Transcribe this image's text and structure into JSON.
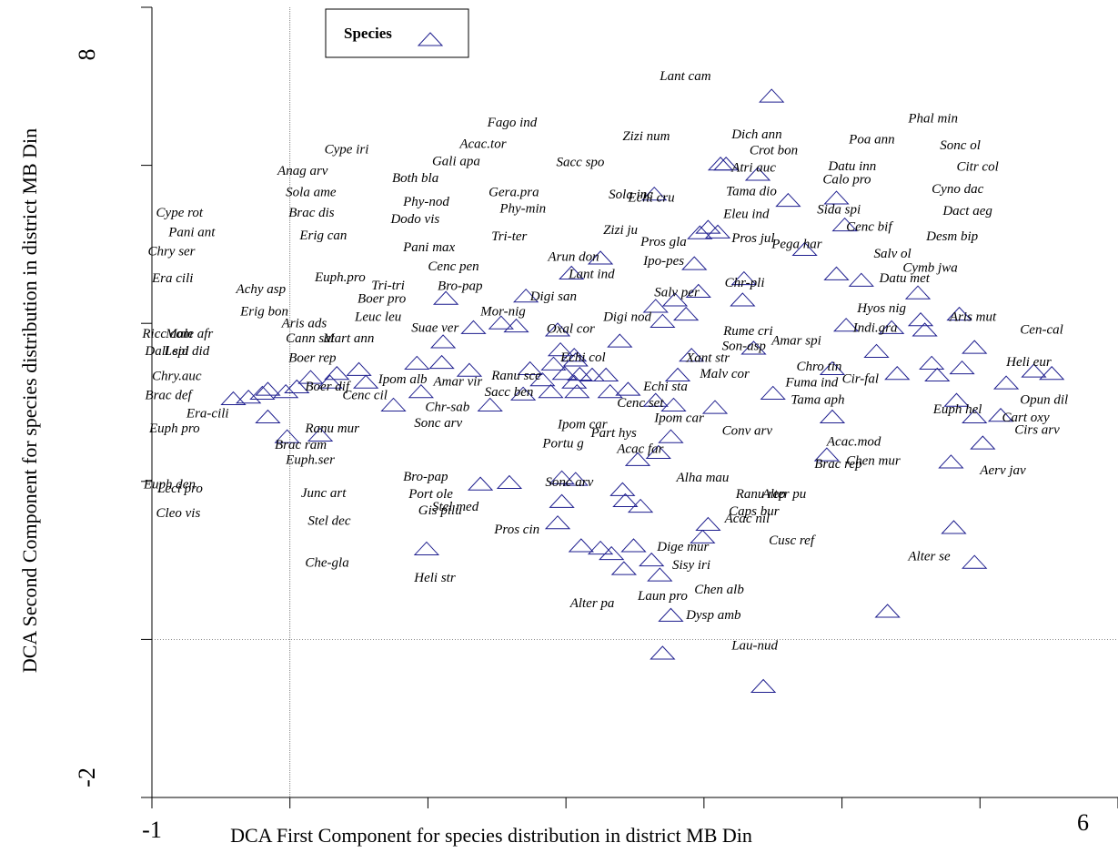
{
  "chart_data": {
    "type": "scatter",
    "xlabel": "DCA First Component for species distribution in district MB Din",
    "ylabel": "DCA Second Component for species distribution in district MB Din",
    "xlim": [
      -1,
      6
    ],
    "ylim": [
      -2,
      8
    ],
    "xticks": [
      -1,
      6
    ],
    "yticks": [
      -2,
      8
    ],
    "xminorticks": [
      0,
      1,
      2,
      3,
      4,
      5
    ],
    "yminorticks": [
      0,
      2,
      4,
      6
    ],
    "reference_lines": {
      "x": 0,
      "y": 0
    },
    "legend": "top-left",
    "series": [
      {
        "name": "Species",
        "color": "#1f1f8f",
        "x": [
          3.49,
          3.12,
          3.16,
          3.39,
          2.64,
          3.61,
          3.96,
          4.02,
          3.03,
          2.97,
          3.1,
          3.73,
          2.25,
          2.04,
          2.93,
          3.96,
          4.14,
          4.55,
          3.29,
          3.28,
          2.96,
          2.79,
          2.65,
          2.87,
          2.7,
          1.71,
          1.13,
          1.53,
          1.64,
          1.33,
          1.94,
          2.39,
          4.03,
          4.36,
          4.57,
          4.6,
          4.85,
          4.96,
          3.36,
          4.25,
          2.91,
          2.06,
          1.96,
          1.91,
          1.74,
          1.99,
          2.19,
          2.29,
          2.06,
          1.11,
          0.92,
          0.5,
          0.34,
          0.15,
          1.3,
          0.95,
          0.75,
          1.45,
          1.69,
          1.89,
          2.08,
          2.32,
          2.45,
          2.81,
          2.65,
          2.78,
          3.08,
          3.5,
          3.93,
          4.4,
          4.65,
          4.69,
          4.87,
          5.39,
          5.52,
          5.19,
          4.83,
          4.96,
          5.15,
          5.02,
          3.93,
          3.89,
          4.79,
          2.76,
          2.52,
          2.67,
          1.59,
          1.38,
          1.97,
          2.07,
          2.41,
          2.43,
          2.54,
          1.97,
          1.94,
          3.03,
          2.99,
          2.11,
          2.25,
          2.33,
          2.49,
          2.62,
          2.42,
          2.68,
          4.81,
          4.96,
          4.33,
          2.76,
          2.7,
          3.43,
          0.99,
          1.1,
          0.55,
          0.29,
          -0.03,
          -0.16,
          -0.2,
          -0.3,
          -0.41,
          0.05,
          -0.16,
          -0.02,
          0.22,
          1.83,
          2.1,
          2.07
        ],
        "y": [
          6.87,
          6.01,
          6.01,
          5.88,
          5.63,
          5.55,
          5.58,
          5.24,
          5.21,
          5.14,
          5.15,
          4.93,
          4.82,
          4.63,
          4.75,
          4.62,
          4.54,
          4.38,
          4.56,
          4.29,
          4.4,
          4.29,
          4.21,
          4.11,
          4.02,
          4.34,
          4.31,
          4.0,
          3.96,
          3.94,
          3.91,
          3.77,
          3.97,
          3.94,
          4.04,
          3.91,
          4.11,
          3.69,
          3.68,
          3.64,
          3.59,
          3.59,
          3.66,
          3.48,
          3.42,
          3.36,
          3.34,
          3.34,
          3.25,
          3.76,
          3.49,
          3.41,
          3.36,
          3.31,
          3.4,
          3.13,
          2.96,
          2.96,
          3.1,
          3.13,
          3.13,
          3.13,
          3.16,
          3.34,
          3.02,
          2.96,
          2.93,
          3.11,
          3.42,
          3.36,
          3.49,
          3.34,
          3.43,
          3.39,
          3.36,
          3.24,
          3.02,
          2.81,
          2.83,
          2.48,
          2.81,
          2.33,
          2.24,
          2.56,
          2.27,
          2.36,
          1.98,
          1.96,
          2.04,
          2.02,
          1.89,
          1.75,
          1.68,
          1.74,
          1.47,
          1.45,
          1.29,
          1.18,
          1.15,
          1.08,
          1.18,
          1.0,
          0.89,
          0.81,
          1.41,
          0.97,
          0.35,
          0.3,
          -0.18,
          -0.6,
          1.14,
          3.5,
          3.25,
          3.25,
          3.13,
          3.16,
          3.11,
          3.06,
          3.04,
          3.19,
          2.81,
          2.56,
          2.58,
          3.28,
          3.35,
          3.53
        ]
      }
    ],
    "annotations": [
      {
        "text": "Lant cam",
        "x": 2.68,
        "y": 7.12
      },
      {
        "text": "Fago ind",
        "x": 1.43,
        "y": 6.53
      },
      {
        "text": "Phal min",
        "x": 4.48,
        "y": 6.58
      },
      {
        "text": "Zizi num",
        "x": 2.41,
        "y": 6.36
      },
      {
        "text": "Dich ann",
        "x": 3.2,
        "y": 6.38
      },
      {
        "text": "Acac.tor",
        "x": 1.23,
        "y": 6.26
      },
      {
        "text": "Poa ann",
        "x": 4.05,
        "y": 6.32
      },
      {
        "text": "Sonc ol",
        "x": 4.71,
        "y": 6.24
      },
      {
        "text": "Cype iri",
        "x": 0.25,
        "y": 6.19
      },
      {
        "text": "Crot bon",
        "x": 3.33,
        "y": 6.18
      },
      {
        "text": "Gali apa",
        "x": 1.03,
        "y": 6.04
      },
      {
        "text": "Sacc spo",
        "x": 1.93,
        "y": 6.03
      },
      {
        "text": "Atri auc",
        "x": 3.2,
        "y": 5.96
      },
      {
        "text": "Datu inn",
        "x": 3.9,
        "y": 5.98
      },
      {
        "text": "Citr col",
        "x": 4.83,
        "y": 5.97
      },
      {
        "text": "Anag arv",
        "x": -0.09,
        "y": 5.92
      },
      {
        "text": "Both bla",
        "x": 0.74,
        "y": 5.83
      },
      {
        "text": "Calo pro",
        "x": 3.86,
        "y": 5.81
      },
      {
        "text": "Cyno dac",
        "x": 4.65,
        "y": 5.69
      },
      {
        "text": "Sola ame",
        "x": -0.03,
        "y": 5.65
      },
      {
        "text": "Gera.pra",
        "x": 1.44,
        "y": 5.65
      },
      {
        "text": "Sola inc",
        "x": 2.31,
        "y": 5.62
      },
      {
        "text": "Echi cru",
        "x": 2.45,
        "y": 5.58
      },
      {
        "text": "Tama dio",
        "x": 3.16,
        "y": 5.66
      },
      {
        "text": "Phy-nod",
        "x": 0.82,
        "y": 5.53
      },
      {
        "text": "Brac dis",
        "x": -0.01,
        "y": 5.39
      },
      {
        "text": "Phy-min",
        "x": 1.52,
        "y": 5.44
      },
      {
        "text": "Sida spi",
        "x": 3.82,
        "y": 5.43
      },
      {
        "text": "Dact aeg",
        "x": 4.73,
        "y": 5.41
      },
      {
        "text": "Cype rot",
        "x": -0.97,
        "y": 5.39
      },
      {
        "text": "Dodo vis",
        "x": 0.73,
        "y": 5.31
      },
      {
        "text": "Eleu ind",
        "x": 3.14,
        "y": 5.37
      },
      {
        "text": "Cenc bif",
        "x": 4.03,
        "y": 5.21
      },
      {
        "text": "Pani ant",
        "x": -0.88,
        "y": 5.14
      },
      {
        "text": "Zizi ju",
        "x": 2.27,
        "y": 5.17
      },
      {
        "text": "Erig can",
        "x": 0.07,
        "y": 5.1
      },
      {
        "text": "Tri-ter",
        "x": 1.46,
        "y": 5.09
      },
      {
        "text": "Pros jul",
        "x": 3.2,
        "y": 5.07
      },
      {
        "text": "Pros gla",
        "x": 2.54,
        "y": 5.02
      },
      {
        "text": "Pega har",
        "x": 3.49,
        "y": 4.99
      },
      {
        "text": "Desm bip",
        "x": 4.61,
        "y": 5.09
      },
      {
        "text": "Chry ser",
        "x": -1.03,
        "y": 4.9
      },
      {
        "text": "Pani max",
        "x": 0.82,
        "y": 4.95
      },
      {
        "text": "Arun don",
        "x": 1.87,
        "y": 4.83
      },
      {
        "text": "Ipo-pes",
        "x": 2.56,
        "y": 4.78
      },
      {
        "text": "Salv ol",
        "x": 4.23,
        "y": 4.87
      },
      {
        "text": "Cenc pen",
        "x": 1.0,
        "y": 4.71
      },
      {
        "text": "Lant ind",
        "x": 2.02,
        "y": 4.61
      },
      {
        "text": "Cymb jwa",
        "x": 4.44,
        "y": 4.69
      },
      {
        "text": "Era cili",
        "x": -1.0,
        "y": 4.56
      },
      {
        "text": "Euph.pro",
        "x": 0.18,
        "y": 4.57
      },
      {
        "text": "Datu met",
        "x": 4.27,
        "y": 4.56
      },
      {
        "text": "Bro-pap",
        "x": 1.07,
        "y": 4.46
      },
      {
        "text": "Chr-pli",
        "x": 3.15,
        "y": 4.5
      },
      {
        "text": "Achy asp",
        "x": -0.39,
        "y": 4.42
      },
      {
        "text": "Tri-tri",
        "x": 0.59,
        "y": 4.47
      },
      {
        "text": "Boer pro",
        "x": 0.49,
        "y": 4.3
      },
      {
        "text": "Salv per",
        "x": 2.64,
        "y": 4.38
      },
      {
        "text": "Digi san",
        "x": 1.74,
        "y": 4.33
      },
      {
        "text": "Hyos nig",
        "x": 4.11,
        "y": 4.18
      },
      {
        "text": "Mor-nig",
        "x": 1.38,
        "y": 4.14
      },
      {
        "text": "Erig bon",
        "x": -0.36,
        "y": 4.14
      },
      {
        "text": "Aris ads",
        "x": -0.06,
        "y": 3.99
      },
      {
        "text": "Leuc leu",
        "x": 0.47,
        "y": 4.07
      },
      {
        "text": "Digi nod",
        "x": 2.27,
        "y": 4.07
      },
      {
        "text": "Aris mut",
        "x": 4.78,
        "y": 4.07
      },
      {
        "text": "Indi.gra",
        "x": 4.08,
        "y": 3.93
      },
      {
        "text": "Suae ver",
        "x": 0.88,
        "y": 3.93
      },
      {
        "text": "Oxal cor",
        "x": 1.86,
        "y": 3.92
      },
      {
        "text": "Rume cri",
        "x": 3.14,
        "y": 3.89
      },
      {
        "text": "Cen-cal",
        "x": 5.29,
        "y": 3.91
      },
      {
        "text": "Ricc com",
        "x": -1.07,
        "y": 3.86
      },
      {
        "text": "Male afr",
        "x": -0.9,
        "y": 3.86
      },
      {
        "text": "Cann sat",
        "x": -0.03,
        "y": 3.8
      },
      {
        "text": "Mart ann",
        "x": 0.24,
        "y": 3.8
      },
      {
        "text": "Son-asp",
        "x": 3.13,
        "y": 3.7
      },
      {
        "text": "Amar spi",
        "x": 3.49,
        "y": 3.77
      },
      {
        "text": "Dall sid",
        "x": -1.05,
        "y": 3.64
      },
      {
        "text": "Lepi did",
        "x": -0.91,
        "y": 3.64
      },
      {
        "text": "Boer rep",
        "x": -0.01,
        "y": 3.55
      },
      {
        "text": "Echi col",
        "x": 1.96,
        "y": 3.56
      },
      {
        "text": "Xant str",
        "x": 2.87,
        "y": 3.55
      },
      {
        "text": "Heli eur",
        "x": 5.19,
        "y": 3.5
      },
      {
        "text": "Chro tin",
        "x": 3.67,
        "y": 3.44
      },
      {
        "text": "Malv cor",
        "x": 2.97,
        "y": 3.35
      },
      {
        "text": "Ranu sce",
        "x": 1.46,
        "y": 3.33
      },
      {
        "text": "Chry.auc",
        "x": -1.0,
        "y": 3.32
      },
      {
        "text": "Ipom alb",
        "x": 0.64,
        "y": 3.28
      },
      {
        "text": "Amar vir",
        "x": 1.04,
        "y": 3.25
      },
      {
        "text": "Fuma ind",
        "x": 3.59,
        "y": 3.24
      },
      {
        "text": "Cir-fal",
        "x": 4.0,
        "y": 3.29
      },
      {
        "text": "Echi sta",
        "x": 2.56,
        "y": 3.19
      },
      {
        "text": "Boer dif",
        "x": 0.11,
        "y": 3.19
      },
      {
        "text": "Sacc ben",
        "x": 1.41,
        "y": 3.12
      },
      {
        "text": "Tama aph",
        "x": 3.63,
        "y": 3.02
      },
      {
        "text": "Cenc cil",
        "x": 0.38,
        "y": 3.08
      },
      {
        "text": "Brac def",
        "x": -1.05,
        "y": 3.08
      },
      {
        "text": "Opun dil",
        "x": 5.29,
        "y": 3.02
      },
      {
        "text": "Cenc set",
        "x": 2.37,
        "y": 2.98
      },
      {
        "text": "Chr-sab",
        "x": 0.98,
        "y": 2.93
      },
      {
        "text": "Euph hel",
        "x": 4.66,
        "y": 2.9
      },
      {
        "text": "Era-cili",
        "x": -0.75,
        "y": 2.85
      },
      {
        "text": "Ipom car",
        "x": 2.64,
        "y": 2.79
      },
      {
        "text": "Cart oxy",
        "x": 5.16,
        "y": 2.8
      },
      {
        "text": "Sonc arv",
        "x": 0.9,
        "y": 2.73
      },
      {
        "text": "Ranu mur",
        "x": 0.11,
        "y": 2.66
      },
      {
        "text": "Ipom car",
        "x": 1.94,
        "y": 2.71
      },
      {
        "text": "Conv arv",
        "x": 3.13,
        "y": 2.63
      },
      {
        "text": "Cirs arv",
        "x": 5.25,
        "y": 2.64
      },
      {
        "text": "Euph pro",
        "x": -1.02,
        "y": 2.66
      },
      {
        "text": "Part hys",
        "x": 2.18,
        "y": 2.6
      },
      {
        "text": "Brac ram",
        "x": -0.11,
        "y": 2.45
      },
      {
        "text": "Portu g",
        "x": 1.83,
        "y": 2.47
      },
      {
        "text": "Acac.mod",
        "x": 3.89,
        "y": 2.49
      },
      {
        "text": "Acac far",
        "x": 2.37,
        "y": 2.4
      },
      {
        "text": "Euph.ser",
        "x": -0.03,
        "y": 2.26
      },
      {
        "text": "Brac rep",
        "x": 3.8,
        "y": 2.21
      },
      {
        "text": "Chen mur",
        "x": 4.03,
        "y": 2.25
      },
      {
        "text": "Aerv jav",
        "x": 5.0,
        "y": 2.13
      },
      {
        "text": "Bro-pap",
        "x": 0.82,
        "y": 2.05
      },
      {
        "text": "Sonc arv",
        "x": 1.85,
        "y": 1.98
      },
      {
        "text": "Alha mau",
        "x": 2.8,
        "y": 2.04
      },
      {
        "text": "Euph den",
        "x": -1.06,
        "y": 1.95
      },
      {
        "text": "Leci pro",
        "x": -0.96,
        "y": 1.9
      },
      {
        "text": "Port ole",
        "x": 0.86,
        "y": 1.83
      },
      {
        "text": "Junc art",
        "x": 0.08,
        "y": 1.84
      },
      {
        "text": "Ranu rep",
        "x": 3.23,
        "y": 1.83
      },
      {
        "text": "Alter pu",
        "x": 3.42,
        "y": 1.83
      },
      {
        "text": "Stel med",
        "x": 1.03,
        "y": 1.67
      },
      {
        "text": "Gis pilu",
        "x": 0.93,
        "y": 1.62
      },
      {
        "text": "Caps bur",
        "x": 3.18,
        "y": 1.61
      },
      {
        "text": "Cleo vis",
        "x": -0.97,
        "y": 1.59
      },
      {
        "text": "Acac nil",
        "x": 3.15,
        "y": 1.52
      },
      {
        "text": "Stel dec",
        "x": 0.13,
        "y": 1.49
      },
      {
        "text": "Pros cin",
        "x": 1.48,
        "y": 1.38
      },
      {
        "text": "Cusc ref",
        "x": 3.47,
        "y": 1.24
      },
      {
        "text": "Dige mur",
        "x": 2.66,
        "y": 1.16
      },
      {
        "text": "Alter se",
        "x": 4.48,
        "y": 1.04
      },
      {
        "text": "Che-gla",
        "x": 0.11,
        "y": 0.96
      },
      {
        "text": "Sisy iri",
        "x": 2.77,
        "y": 0.93
      },
      {
        "text": "Heli str",
        "x": 0.9,
        "y": 0.77
      },
      {
        "text": "Chen alb",
        "x": 2.93,
        "y": 0.62
      },
      {
        "text": "Alter pa",
        "x": 2.03,
        "y": 0.45
      },
      {
        "text": "Laun pro",
        "x": 2.52,
        "y": 0.54
      },
      {
        "text": "Dysp amb",
        "x": 2.87,
        "y": 0.3
      },
      {
        "text": "Lau-nud",
        "x": 3.2,
        "y": -0.09
      }
    ]
  }
}
